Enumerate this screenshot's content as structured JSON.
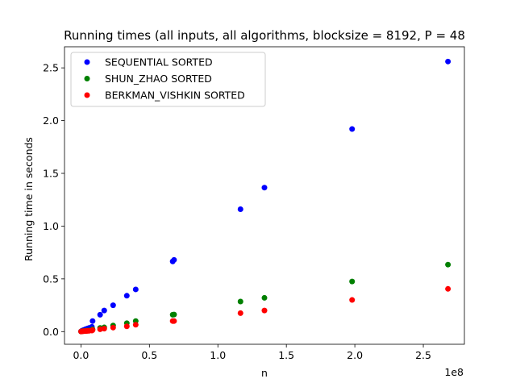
{
  "chart_data": {
    "type": "scatter",
    "title": "Running times (all inputs, all algorithms, blocksize = 8192, P = 48",
    "xlabel": "n",
    "ylabel": "Running time in seconds",
    "x_offset_label": "1e8",
    "x_scale": 100000000,
    "xlim": [
      -12000000,
      280000000
    ],
    "ylim": [
      -0.12,
      2.7
    ],
    "x_ticks": [
      0,
      50000000,
      100000000,
      150000000,
      200000000,
      250000000
    ],
    "x_tick_labels": [
      "0.0",
      "0.5",
      "1.0",
      "1.5",
      "2.0",
      "2.5"
    ],
    "y_ticks": [
      0.0,
      0.5,
      1.0,
      1.5,
      2.0,
      2.5
    ],
    "y_tick_labels": [
      "0.0",
      "0.5",
      "1.0",
      "1.5",
      "2.0",
      "2.5"
    ],
    "grid": false,
    "legend_position": "top-left",
    "series": [
      {
        "name": "SEQUENTIAL SORTED",
        "color": "#0000ff",
        "x": [
          100000,
          500000,
          1000000,
          2000000,
          3000000,
          4000000,
          5000000,
          6000000,
          8000000,
          8500000,
          14000000,
          17000000,
          23500000,
          33500000,
          40000000,
          67000000,
          68000000,
          116500000,
          134000000,
          198000000,
          268000000
        ],
        "y": [
          0.002,
          0.005,
          0.01,
          0.015,
          0.02,
          0.025,
          0.03,
          0.035,
          0.045,
          0.1,
          0.16,
          0.2,
          0.25,
          0.34,
          0.4,
          0.665,
          0.68,
          1.16,
          1.365,
          1.92,
          2.56
        ]
      },
      {
        "name": "SHUN_ZHAO SORTED",
        "color": "#008000",
        "x": [
          100000,
          500000,
          1000000,
          2000000,
          3000000,
          4000000,
          5000000,
          6000000,
          8000000,
          8500000,
          14000000,
          17000000,
          23500000,
          33500000,
          40000000,
          67000000,
          68000000,
          116500000,
          134000000,
          198000000,
          268000000
        ],
        "y": [
          0.001,
          0.002,
          0.004,
          0.005,
          0.007,
          0.008,
          0.01,
          0.012,
          0.014,
          0.022,
          0.035,
          0.04,
          0.058,
          0.08,
          0.1,
          0.16,
          0.162,
          0.285,
          0.32,
          0.475,
          0.635
        ]
      },
      {
        "name": "BERKMAN_VISHKIN SORTED",
        "color": "#ff0000",
        "x": [
          100000,
          500000,
          1000000,
          2000000,
          3000000,
          4000000,
          5000000,
          6000000,
          8000000,
          8500000,
          14000000,
          17000000,
          23500000,
          33500000,
          40000000,
          67000000,
          68000000,
          116500000,
          134000000,
          198000000,
          268000000
        ],
        "y": [
          0.001,
          0.002,
          0.003,
          0.004,
          0.005,
          0.006,
          0.007,
          0.008,
          0.01,
          0.015,
          0.022,
          0.028,
          0.038,
          0.05,
          0.065,
          0.1,
          0.1,
          0.175,
          0.2,
          0.3,
          0.405
        ]
      }
    ]
  }
}
